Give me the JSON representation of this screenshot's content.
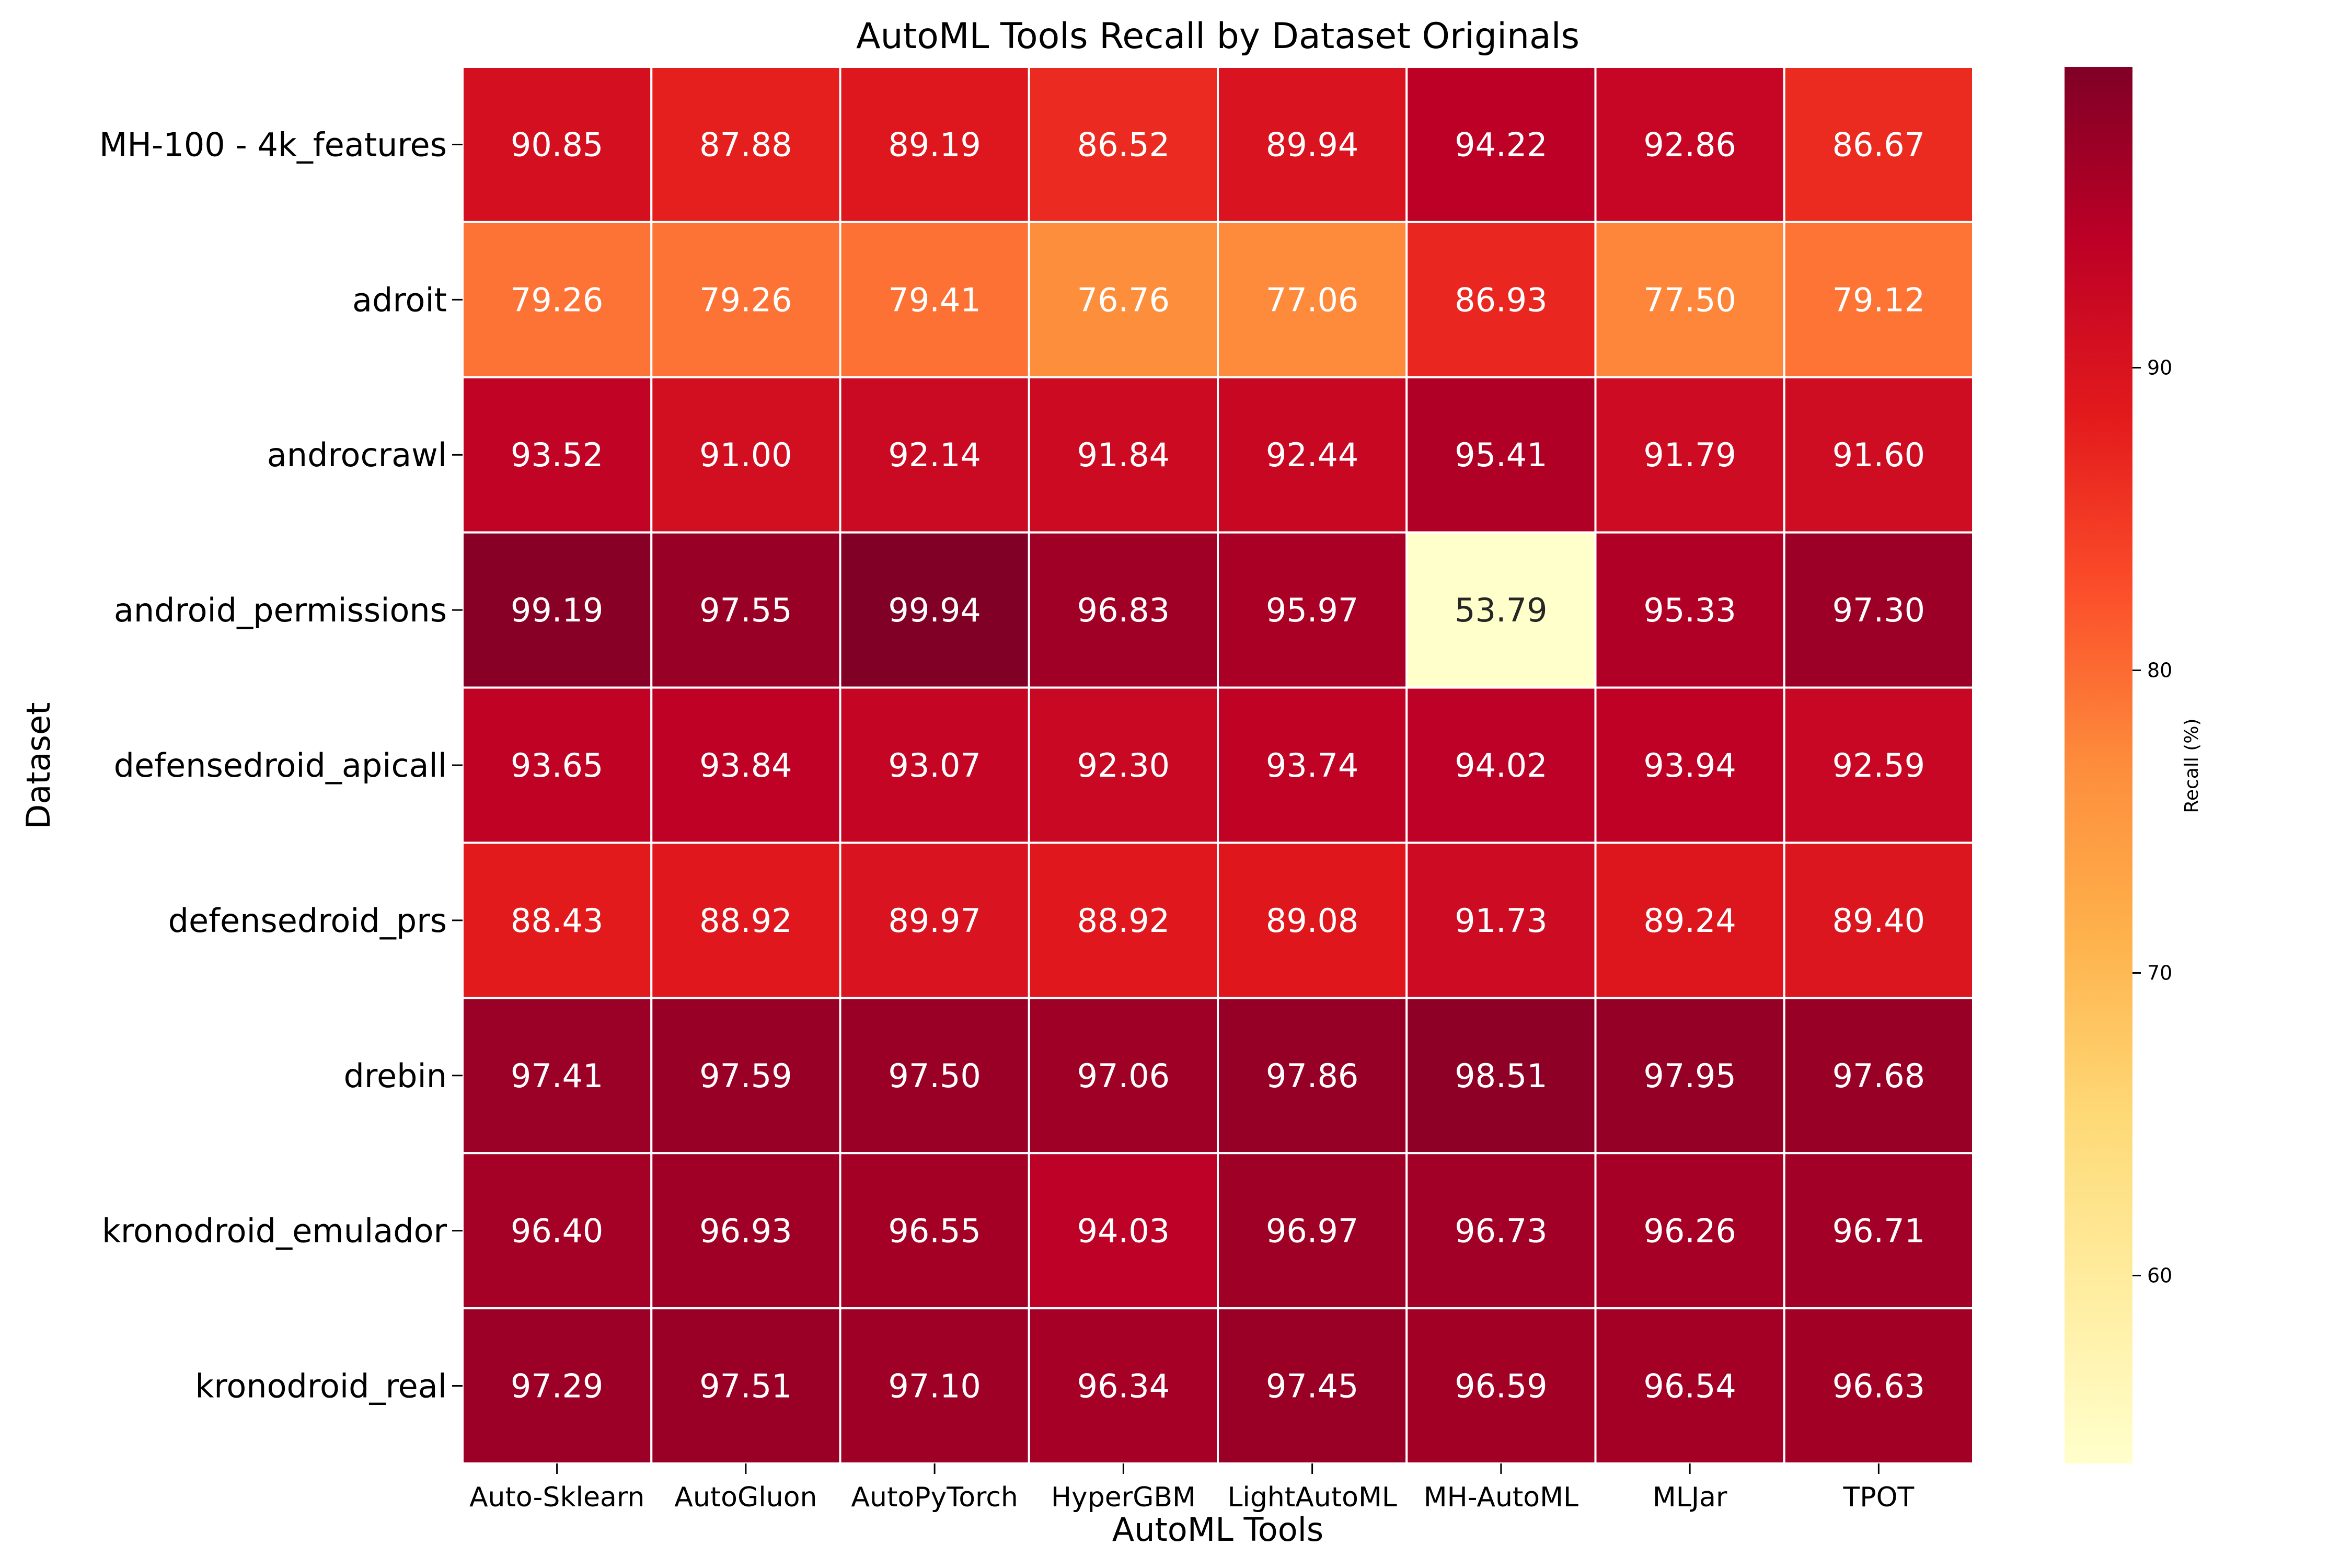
{
  "chart_data": {
    "type": "heatmap",
    "title": "AutoML Tools Recall by Dataset Originals",
    "xlabel": "AutoML Tools",
    "ylabel": "Dataset",
    "x_categories": [
      "Auto-Sklearn",
      "AutoGluon",
      "AutoPyTorch",
      "HyperGBM",
      "LightAutoML",
      "MH-AutoML",
      "MLJar",
      "TPOT"
    ],
    "y_categories": [
      "MH-100 - 4k_features",
      "adroit",
      "androcrawl",
      "android_permissions",
      "defensedroid_apicall",
      "defensedroid_prs",
      "drebin",
      "kronodroid_emulador",
      "kronodroid_real"
    ],
    "values": [
      [
        90.85,
        87.88,
        89.19,
        86.52,
        89.94,
        94.22,
        92.86,
        86.67
      ],
      [
        79.26,
        79.26,
        79.41,
        76.76,
        77.06,
        86.93,
        77.5,
        79.12
      ],
      [
        93.52,
        91.0,
        92.14,
        91.84,
        92.44,
        95.41,
        91.79,
        91.6
      ],
      [
        99.19,
        97.55,
        99.94,
        96.83,
        95.97,
        53.79,
        95.33,
        97.3
      ],
      [
        93.65,
        93.84,
        93.07,
        92.3,
        93.74,
        94.02,
        93.94,
        92.59
      ],
      [
        88.43,
        88.92,
        89.97,
        88.92,
        89.08,
        91.73,
        89.24,
        89.4
      ],
      [
        97.41,
        97.59,
        97.5,
        97.06,
        97.86,
        98.51,
        97.95,
        97.68
      ],
      [
        96.4,
        96.93,
        96.55,
        94.03,
        96.97,
        96.73,
        96.26,
        96.71
      ],
      [
        97.29,
        97.51,
        97.1,
        96.34,
        97.45,
        96.59,
        96.54,
        96.63
      ]
    ],
    "value_format": "2 decimals",
    "colormap": "YlOrRd",
    "colorbar": {
      "label": "Recall (%)",
      "range": [
        53.79,
        99.94
      ],
      "ticks": [
        60,
        70,
        80,
        90
      ]
    }
  }
}
